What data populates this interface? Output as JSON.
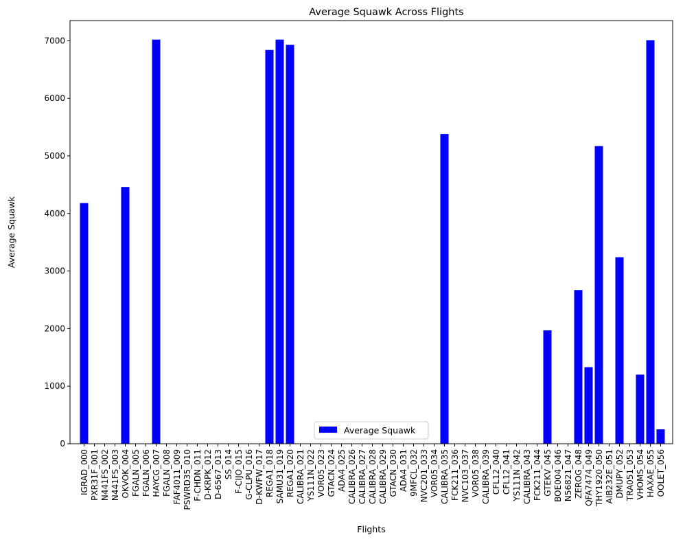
{
  "chart_data": {
    "type": "bar",
    "title": "Average Squawk Across Flights",
    "xlabel": "Flights",
    "ylabel": "Average Squawk",
    "ylim": [
      0,
      7350
    ],
    "yticks": [
      0,
      1000,
      2000,
      3000,
      4000,
      5000,
      6000,
      7000
    ],
    "grid": false,
    "legend": {
      "placement": "lower-center",
      "entries": [
        "Average Squawk"
      ]
    },
    "bar_color": "#0000ff",
    "categories": [
      "IGRAD_000",
      "PXR31F_001",
      "N441FS_002",
      "N441FS_003",
      "OKVOK_004",
      "FGALN_005",
      "FGALN_006",
      "HAYCG_007",
      "FGALN_008",
      "FAF4011_009",
      "PSWRD35_010",
      "F-CHDN_011",
      "D-KRPK_012",
      "D-6567_013",
      "SS_014",
      "F-CIJO_015",
      "G-CLPU_016",
      "D-KWFW_017",
      "REGA1_018",
      "SAMU31_019",
      "REGA1_020",
      "CALIBRA_021",
      "YS111N_022",
      "VOR05_023",
      "GTACN_024",
      "ADA4_025",
      "CALIBRA_026",
      "CALIBRA_027",
      "CALIBRA_028",
      "CALIBRA_029",
      "GTACN_030",
      "ADA4_031",
      "9MFCL_032",
      "NVC201_033",
      "VOR05_034",
      "CALIBRA_035",
      "FCK211_036",
      "NVC103_037",
      "VOR05_038",
      "CALIBRA_039",
      "CFL12_040",
      "CFL12_041",
      "YS111N_042",
      "CALIBRA_043",
      "FCK211_044",
      "GTEKV_045",
      "BOE004_046",
      "N56821_047",
      "ZEROG_048",
      "QFA7474_049",
      "THY1920_050",
      "AIB232E_051",
      "DMUPY_052",
      "TRA051_053",
      "VHOMS_054",
      "HAXAE_055",
      "OOLET_056"
    ],
    "series": [
      {
        "name": "Average Squawk",
        "values": [
          4180,
          0,
          0,
          0,
          4460,
          0,
          0,
          7020,
          0,
          0,
          0,
          0,
          0,
          0,
          0,
          0,
          0,
          0,
          6840,
          7020,
          6930,
          0,
          0,
          0,
          0,
          0,
          0,
          0,
          0,
          0,
          0,
          0,
          0,
          0,
          0,
          5380,
          0,
          0,
          0,
          0,
          0,
          0,
          0,
          0,
          0,
          1970,
          0,
          0,
          2670,
          1330,
          5170,
          0,
          3240,
          0,
          1200,
          7010,
          250
        ]
      }
    ]
  }
}
